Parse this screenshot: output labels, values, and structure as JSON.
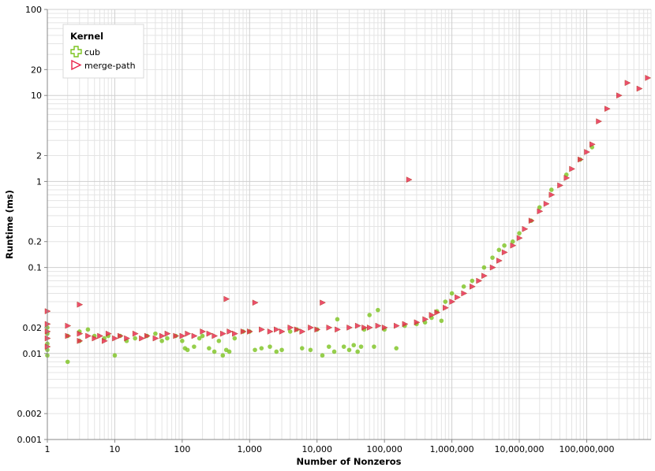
{
  "chart_data": {
    "type": "scatter",
    "title": "",
    "xlabel": "Number of Nonzeros",
    "ylabel": "Runtime (ms)",
    "x_scale": "log",
    "y_scale": "log",
    "xlim": [
      1,
      900000000
    ],
    "ylim": [
      0.001,
      100
    ],
    "grid": true,
    "legend_placement": "top-left",
    "legend_title": "Kernel",
    "x_ticks": [
      {
        "value": 1,
        "label": "1"
      },
      {
        "value": 10,
        "label": "10"
      },
      {
        "value": 100,
        "label": "100"
      },
      {
        "value": 1000,
        "label": "1,000"
      },
      {
        "value": 10000,
        "label": "10,000"
      },
      {
        "value": 100000,
        "label": "100,000"
      },
      {
        "value": 1000000,
        "label": "1,000,000"
      },
      {
        "value": 10000000,
        "label": "10,000,000"
      },
      {
        "value": 100000000,
        "label": "100,000,000"
      }
    ],
    "y_ticks": [
      {
        "value": 0.001,
        "label": "0.001"
      },
      {
        "value": 0.002,
        "label": "0.002"
      },
      {
        "value": 0.01,
        "label": "0.01"
      },
      {
        "value": 0.02,
        "label": "0.02"
      },
      {
        "value": 0.1,
        "label": "0.1"
      },
      {
        "value": 0.2,
        "label": "0.2"
      },
      {
        "value": 1,
        "label": "1"
      },
      {
        "value": 2,
        "label": "2"
      },
      {
        "value": 10,
        "label": "10"
      },
      {
        "value": 20,
        "label": "20"
      },
      {
        "value": 100,
        "label": "100"
      }
    ],
    "series": [
      {
        "name": "cub",
        "marker": "circle",
        "color": "#7cc31f",
        "legend_icon": "plus-outline-icon",
        "points": [
          [
            1,
            0.0095
          ],
          [
            1,
            0.011
          ],
          [
            1,
            0.013
          ],
          [
            1,
            0.017
          ],
          [
            1,
            0.02
          ],
          [
            2,
            0.008
          ],
          [
            2,
            0.016
          ],
          [
            3,
            0.014
          ],
          [
            3,
            0.018
          ],
          [
            4,
            0.019
          ],
          [
            5,
            0.016
          ],
          [
            7,
            0.015
          ],
          [
            8,
            0.016
          ],
          [
            10,
            0.0095
          ],
          [
            12,
            0.016
          ],
          [
            15,
            0.014
          ],
          [
            20,
            0.015
          ],
          [
            30,
            0.016
          ],
          [
            40,
            0.017
          ],
          [
            50,
            0.014
          ],
          [
            60,
            0.015
          ],
          [
            80,
            0.016
          ],
          [
            100,
            0.014
          ],
          [
            110,
            0.0115
          ],
          [
            120,
            0.011
          ],
          [
            150,
            0.012
          ],
          [
            180,
            0.015
          ],
          [
            200,
            0.016
          ],
          [
            250,
            0.0115
          ],
          [
            300,
            0.0105
          ],
          [
            350,
            0.014
          ],
          [
            400,
            0.0095
          ],
          [
            450,
            0.011
          ],
          [
            500,
            0.0105
          ],
          [
            600,
            0.015
          ],
          [
            800,
            0.018
          ],
          [
            1000,
            0.018
          ],
          [
            1200,
            0.011
          ],
          [
            1500,
            0.0115
          ],
          [
            2000,
            0.012
          ],
          [
            2500,
            0.0105
          ],
          [
            3000,
            0.011
          ],
          [
            4000,
            0.018
          ],
          [
            5000,
            0.019
          ],
          [
            6000,
            0.0115
          ],
          [
            8000,
            0.011
          ],
          [
            10000,
            0.019
          ],
          [
            12000,
            0.0095
          ],
          [
            15000,
            0.012
          ],
          [
            18000,
            0.0105
          ],
          [
            20000,
            0.025
          ],
          [
            25000,
            0.012
          ],
          [
            30000,
            0.011
          ],
          [
            35000,
            0.0125
          ],
          [
            40000,
            0.0105
          ],
          [
            45000,
            0.012
          ],
          [
            50000,
            0.019
          ],
          [
            60000,
            0.028
          ],
          [
            70000,
            0.012
          ],
          [
            80000,
            0.032
          ],
          [
            100000,
            0.019
          ],
          [
            150000,
            0.0115
          ],
          [
            200000,
            0.021
          ],
          [
            300000,
            0.022
          ],
          [
            400000,
            0.023
          ],
          [
            500000,
            0.026
          ],
          [
            600000,
            0.031
          ],
          [
            700000,
            0.024
          ],
          [
            800000,
            0.04
          ],
          [
            1000000,
            0.05
          ],
          [
            1500000,
            0.06
          ],
          [
            2000000,
            0.07
          ],
          [
            3000000,
            0.1
          ],
          [
            4000000,
            0.13
          ],
          [
            5000000,
            0.16
          ],
          [
            6000000,
            0.18
          ],
          [
            8000000,
            0.2
          ],
          [
            10000000,
            0.25
          ],
          [
            15000000,
            0.35
          ],
          [
            20000000,
            0.5
          ],
          [
            30000000,
            0.8
          ],
          [
            50000000,
            1.2
          ],
          [
            80000000,
            1.8
          ],
          [
            120000000,
            2.5
          ]
        ]
      },
      {
        "name": "merge-path",
        "marker": "triangle",
        "color": "#e8234a",
        "legend_icon": "triangle-outline-icon",
        "points": [
          [
            1,
            0.012
          ],
          [
            1,
            0.015
          ],
          [
            1,
            0.018
          ],
          [
            1,
            0.022
          ],
          [
            1,
            0.031
          ],
          [
            2,
            0.016
          ],
          [
            2,
            0.021
          ],
          [
            3,
            0.014
          ],
          [
            3,
            0.017
          ],
          [
            3,
            0.037
          ],
          [
            4,
            0.016
          ],
          [
            5,
            0.015
          ],
          [
            6,
            0.016
          ],
          [
            7,
            0.014
          ],
          [
            8,
            0.017
          ],
          [
            10,
            0.015
          ],
          [
            12,
            0.016
          ],
          [
            15,
            0.015
          ],
          [
            20,
            0.017
          ],
          [
            25,
            0.015
          ],
          [
            30,
            0.016
          ],
          [
            40,
            0.015
          ],
          [
            50,
            0.016
          ],
          [
            60,
            0.017
          ],
          [
            80,
            0.016
          ],
          [
            100,
            0.016
          ],
          [
            120,
            0.017
          ],
          [
            150,
            0.016
          ],
          [
            200,
            0.018
          ],
          [
            250,
            0.017
          ],
          [
            300,
            0.016
          ],
          [
            400,
            0.017
          ],
          [
            450,
            0.043
          ],
          [
            500,
            0.018
          ],
          [
            600,
            0.017
          ],
          [
            800,
            0.018
          ],
          [
            1000,
            0.018
          ],
          [
            1200,
            0.039
          ],
          [
            1500,
            0.019
          ],
          [
            2000,
            0.018
          ],
          [
            2500,
            0.019
          ],
          [
            3000,
            0.018
          ],
          [
            4000,
            0.02
          ],
          [
            5000,
            0.019
          ],
          [
            6000,
            0.018
          ],
          [
            8000,
            0.02
          ],
          [
            10000,
            0.019
          ],
          [
            12000,
            0.039
          ],
          [
            15000,
            0.02
          ],
          [
            20000,
            0.019
          ],
          [
            30000,
            0.02
          ],
          [
            40000,
            0.021
          ],
          [
            50000,
            0.02
          ],
          [
            60000,
            0.02
          ],
          [
            80000,
            0.021
          ],
          [
            100000,
            0.02
          ],
          [
            150000,
            0.021
          ],
          [
            200000,
            0.022
          ],
          [
            230000,
            1.05
          ],
          [
            300000,
            0.023
          ],
          [
            400000,
            0.025
          ],
          [
            500000,
            0.028
          ],
          [
            600000,
            0.03
          ],
          [
            800000,
            0.034
          ],
          [
            1000000,
            0.04
          ],
          [
            1200000,
            0.045
          ],
          [
            1500000,
            0.05
          ],
          [
            2000000,
            0.06
          ],
          [
            2500000,
            0.07
          ],
          [
            3000000,
            0.08
          ],
          [
            4000000,
            0.1
          ],
          [
            5000000,
            0.12
          ],
          [
            6000000,
            0.15
          ],
          [
            8000000,
            0.18
          ],
          [
            10000000,
            0.22
          ],
          [
            12000000,
            0.28
          ],
          [
            15000000,
            0.35
          ],
          [
            20000000,
            0.45
          ],
          [
            25000000,
            0.55
          ],
          [
            30000000,
            0.7
          ],
          [
            40000000,
            0.9
          ],
          [
            50000000,
            1.1
          ],
          [
            60000000,
            1.4
          ],
          [
            80000000,
            1.8
          ],
          [
            100000000,
            2.2
          ],
          [
            120000000,
            2.7
          ],
          [
            150000000,
            5
          ],
          [
            200000000,
            7
          ],
          [
            300000000,
            10
          ],
          [
            400000000,
            14
          ],
          [
            600000000,
            12
          ],
          [
            800000000,
            16
          ]
        ]
      }
    ]
  }
}
